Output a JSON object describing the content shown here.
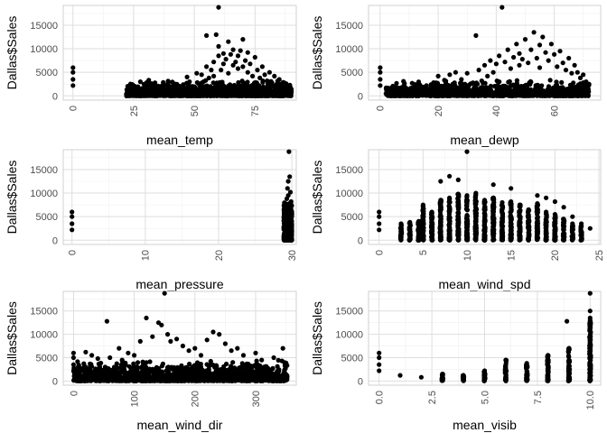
{
  "chart_data": [
    {
      "type": "scatter",
      "xlabel": "mean_temp",
      "ylabel": "Dallas$Sales",
      "xlim": [
        -4,
        92
      ],
      "ylim": [
        -900,
        19200
      ],
      "xticks": [
        0,
        25,
        50,
        75
      ],
      "xtick_labels": [
        "0",
        "25",
        "50",
        "75"
      ],
      "yticks": [
        0,
        5000,
        10000,
        15000
      ],
      "ytick_labels": [
        "0",
        "5000",
        "10000",
        "15000"
      ],
      "minor_x": [
        12.5,
        37.5,
        62.5,
        87.5
      ],
      "minor_y": [
        2500,
        7500,
        12500,
        17500
      ],
      "grid": true,
      "x_label_rotation": -90,
      "points": [
        [
          0,
          6000
        ],
        [
          0,
          5000
        ],
        [
          0,
          3500
        ],
        [
          0,
          2200
        ],
        [
          22,
          400
        ],
        [
          24,
          600
        ],
        [
          25,
          300
        ],
        [
          27,
          800
        ],
        [
          28,
          500
        ],
        [
          30,
          700
        ],
        [
          32,
          400
        ],
        [
          33,
          900
        ],
        [
          35,
          600
        ],
        [
          36,
          1100
        ],
        [
          38,
          800
        ],
        [
          40,
          1300
        ],
        [
          42,
          900
        ],
        [
          43,
          1500
        ],
        [
          45,
          1200
        ],
        [
          46,
          1700
        ],
        [
          47,
          4000
        ],
        [
          48,
          3000
        ],
        [
          50,
          1500
        ],
        [
          51,
          4800
        ],
        [
          52,
          2500
        ],
        [
          53,
          4500
        ],
        [
          54,
          2000
        ],
        [
          55,
          12800
        ],
        [
          55,
          6200
        ],
        [
          56,
          3800
        ],
        [
          57,
          5500
        ],
        [
          58,
          7200
        ],
        [
          58,
          4200
        ],
        [
          59,
          13000
        ],
        [
          60,
          8500
        ],
        [
          60,
          10500
        ],
        [
          60,
          18800
        ],
        [
          61,
          5500
        ],
        [
          62,
          9000
        ],
        [
          62,
          6800
        ],
        [
          63,
          7800
        ],
        [
          64,
          11500
        ],
        [
          64,
          4800
        ],
        [
          65,
          8800
        ],
        [
          66,
          6500
        ],
        [
          66,
          9800
        ],
        [
          67,
          7200
        ],
        [
          68,
          5800
        ],
        [
          68,
          8500
        ],
        [
          69,
          9600
        ],
        [
          70,
          6200
        ],
        [
          70,
          12000
        ],
        [
          71,
          7500
        ],
        [
          72,
          5000
        ],
        [
          72,
          9200
        ],
        [
          73,
          6800
        ],
        [
          74,
          4200
        ],
        [
          75,
          8200
        ],
        [
          76,
          5500
        ],
        [
          77,
          3800
        ],
        [
          78,
          6200
        ],
        [
          79,
          4500
        ],
        [
          80,
          3200
        ],
        [
          81,
          5000
        ],
        [
          82,
          2800
        ],
        [
          83,
          4200
        ],
        [
          84,
          2500
        ],
        [
          85,
          3500
        ],
        [
          86,
          2200
        ],
        [
          87,
          2800
        ],
        [
          88,
          1800
        ],
        [
          89,
          2000
        ],
        [
          90,
          1400
        ],
        [
          30,
          200
        ],
        [
          35,
          300
        ],
        [
          40,
          500
        ],
        [
          45,
          700
        ],
        [
          50,
          900
        ],
        [
          55,
          1200
        ],
        [
          60,
          1500
        ],
        [
          65,
          1800
        ],
        [
          70,
          1800
        ],
        [
          75,
          1600
        ],
        [
          80,
          1400
        ],
        [
          85,
          1300
        ],
        [
          90,
          1000
        ]
      ],
      "band": {
        "x_from": 22,
        "x_to": 90,
        "y_low": 0,
        "y_high_min": 500,
        "y_high_max": 3500,
        "density": 1200
      }
    },
    {
      "type": "scatter",
      "xlabel": "mean_dewp",
      "ylabel": "Dallas$Sales",
      "xlim": [
        -4,
        76
      ],
      "ylim": [
        -900,
        19200
      ],
      "xticks": [
        0,
        20,
        40,
        60
      ],
      "xtick_labels": [
        "0",
        "20",
        "40",
        "60"
      ],
      "yticks": [
        0,
        5000,
        10000,
        15000
      ],
      "ytick_labels": [
        "0",
        "5000",
        "10000",
        "15000"
      ],
      "minor_x": [
        10,
        30,
        50,
        70
      ],
      "minor_y": [
        2500,
        7500,
        12500,
        17500
      ],
      "grid": true,
      "x_label_rotation": -90,
      "points": [
        [
          0,
          6000
        ],
        [
          0,
          5000
        ],
        [
          0,
          3500
        ],
        [
          0,
          2200
        ],
        [
          2,
          500
        ],
        [
          4,
          400
        ],
        [
          6,
          600
        ],
        [
          8,
          300
        ],
        [
          10,
          700
        ],
        [
          12,
          500
        ],
        [
          14,
          900
        ],
        [
          16,
          600
        ],
        [
          18,
          1200
        ],
        [
          20,
          800
        ],
        [
          20,
          4200
        ],
        [
          22,
          1500
        ],
        [
          24,
          4500
        ],
        [
          25,
          2500
        ],
        [
          26,
          5000
        ],
        [
          28,
          3500
        ],
        [
          30,
          4800
        ],
        [
          32,
          2800
        ],
        [
          33,
          12800
        ],
        [
          34,
          5500
        ],
        [
          35,
          3200
        ],
        [
          36,
          6500
        ],
        [
          37,
          4200
        ],
        [
          38,
          7500
        ],
        [
          39,
          5000
        ],
        [
          40,
          6800
        ],
        [
          41,
          8500
        ],
        [
          42,
          18800
        ],
        [
          43,
          7200
        ],
        [
          44,
          9800
        ],
        [
          45,
          5800
        ],
        [
          46,
          8200
        ],
        [
          47,
          11000
        ],
        [
          48,
          6500
        ],
        [
          48,
          9000
        ],
        [
          49,
          7800
        ],
        [
          50,
          12000
        ],
        [
          51,
          7000
        ],
        [
          52,
          9800
        ],
        [
          53,
          13500
        ],
        [
          54,
          8000
        ],
        [
          55,
          10800
        ],
        [
          55,
          6000
        ],
        [
          56,
          12500
        ],
        [
          57,
          9200
        ],
        [
          58,
          7500
        ],
        [
          59,
          11000
        ],
        [
          60,
          8800
        ],
        [
          61,
          6200
        ],
        [
          62,
          9500
        ],
        [
          63,
          7000
        ],
        [
          64,
          5500
        ],
        [
          65,
          8000
        ],
        [
          66,
          4800
        ],
        [
          67,
          6500
        ],
        [
          68,
          5000
        ],
        [
          69,
          3800
        ],
        [
          70,
          4500
        ],
        [
          71,
          3000
        ],
        [
          72,
          2500
        ]
      ],
      "band": {
        "x_from": 2,
        "x_to": 72,
        "y_low": 0,
        "y_high_min": 500,
        "y_high_max": 3500,
        "density": 1200
      }
    },
    {
      "type": "scatter",
      "xlabel": "mean_pressure",
      "ylabel": "Dallas$Sales",
      "xlim": [
        -1.2,
        30.6
      ],
      "ylim": [
        -900,
        19200
      ],
      "xticks": [
        0,
        10,
        20,
        30
      ],
      "xtick_labels": [
        "0",
        "10",
        "20",
        "30"
      ],
      "yticks": [
        0,
        5000,
        10000,
        15000
      ],
      "ytick_labels": [
        "0",
        "5000",
        "10000",
        "15000"
      ],
      "minor_x": [
        5,
        15,
        25
      ],
      "minor_y": [
        2500,
        7500,
        12500,
        17500
      ],
      "grid": true,
      "x_label_rotation": -90,
      "points": [
        [
          0,
          6000
        ],
        [
          0,
          5000
        ],
        [
          0,
          3500
        ],
        [
          0,
          2200
        ],
        [
          29.6,
          18800
        ],
        [
          29.7,
          13500
        ],
        [
          29.5,
          12500
        ],
        [
          29.4,
          11000
        ],
        [
          29.8,
          10200
        ],
        [
          29.5,
          9500
        ],
        [
          29.3,
          8800
        ],
        [
          29.9,
          8200
        ],
        [
          29.6,
          7600
        ]
      ],
      "band": {
        "x_from": 28.9,
        "x_to": 30.0,
        "y_low": 0,
        "y_high_min": 7000,
        "y_high_max": 8000,
        "density": 600,
        "strip": true
      }
    },
    {
      "type": "scatter",
      "xlabel": "mean_wind_spd",
      "ylabel": "Dallas$Sales",
      "xlim": [
        -1.2,
        25.2
      ],
      "ylim": [
        -900,
        19200
      ],
      "xticks": [
        0,
        5,
        10,
        15,
        20,
        25
      ],
      "xtick_labels": [
        "0",
        "5",
        "10",
        "15",
        "20",
        "25"
      ],
      "minor_x": [
        2.5,
        7.5,
        12.5,
        17.5,
        22.5
      ],
      "yticks": [
        0,
        5000,
        10000,
        15000
      ],
      "ytick_labels": [
        "0",
        "5000",
        "10000",
        "15000"
      ],
      "minor_y": [
        2500,
        7500,
        12500,
        17500
      ],
      "grid": true,
      "x_label_rotation": -90,
      "points": [
        [
          0,
          6000
        ],
        [
          0,
          5000
        ],
        [
          0,
          3500
        ],
        [
          0,
          2200
        ],
        [
          7,
          12500
        ],
        [
          8,
          13600
        ],
        [
          9,
          12800
        ],
        [
          10,
          18800
        ],
        [
          11,
          10000
        ],
        [
          13,
          11800
        ],
        [
          15,
          11000
        ],
        [
          18,
          9500
        ],
        [
          19,
          9000
        ],
        [
          20,
          8200
        ],
        [
          21,
          7000
        ],
        [
          22,
          5000
        ],
        [
          23,
          3500
        ],
        [
          24,
          2500
        ]
      ],
      "columns": [
        {
          "x": 2.5,
          "top": 3500
        },
        {
          "x": 3.5,
          "top": 3800
        },
        {
          "x": 4.5,
          "top": 4000
        },
        {
          "x": 5.0,
          "top": 7500
        },
        {
          "x": 6.0,
          "top": 6000
        },
        {
          "x": 7.0,
          "top": 8500
        },
        {
          "x": 8.0,
          "top": 9000
        },
        {
          "x": 9.0,
          "top": 9800
        },
        {
          "x": 10.0,
          "top": 9500
        },
        {
          "x": 11.0,
          "top": 9600
        },
        {
          "x": 12.0,
          "top": 8500
        },
        {
          "x": 13.0,
          "top": 9000
        },
        {
          "x": 14.0,
          "top": 8000
        },
        {
          "x": 15.0,
          "top": 8200
        },
        {
          "x": 16.0,
          "top": 7500
        },
        {
          "x": 17.0,
          "top": 6500
        },
        {
          "x": 18.0,
          "top": 7800
        },
        {
          "x": 19.0,
          "top": 6000
        },
        {
          "x": 20.0,
          "top": 5500
        },
        {
          "x": 21.0,
          "top": 4500
        },
        {
          "x": 22.0,
          "top": 3500
        },
        {
          "x": 23.0,
          "top": 3000
        }
      ]
    },
    {
      "type": "scatter",
      "xlabel": "mean_wind_dir",
      "ylabel": "Dallas$Sales",
      "xlim": [
        -17,
        367
      ],
      "ylim": [
        -900,
        19200
      ],
      "xticks": [
        0,
        100,
        200,
        300
      ],
      "xtick_labels": [
        "0",
        "100",
        "200",
        "300"
      ],
      "minor_x": [
        50,
        150,
        250,
        350
      ],
      "yticks": [
        0,
        5000,
        10000,
        15000
      ],
      "ytick_labels": [
        "0",
        "5000",
        "10000",
        "15000"
      ],
      "minor_y": [
        2500,
        7500,
        12500,
        17500
      ],
      "grid": true,
      "x_label_rotation": -90,
      "points": [
        [
          0,
          6000
        ],
        [
          0,
          5000
        ],
        [
          0,
          3500
        ],
        [
          0,
          2200
        ],
        [
          55,
          12800
        ],
        [
          75,
          7000
        ],
        [
          90,
          6000
        ],
        [
          110,
          8500
        ],
        [
          120,
          13500
        ],
        [
          130,
          9500
        ],
        [
          140,
          12500
        ],
        [
          145,
          12000
        ],
        [
          150,
          18800
        ],
        [
          155,
          10000
        ],
        [
          160,
          8500
        ],
        [
          170,
          9000
        ],
        [
          180,
          7500
        ],
        [
          190,
          6500
        ],
        [
          200,
          7000
        ],
        [
          210,
          5500
        ],
        [
          220,
          8800
        ],
        [
          230,
          10500
        ],
        [
          240,
          10000
        ],
        [
          250,
          8000
        ],
        [
          260,
          6500
        ],
        [
          270,
          7000
        ],
        [
          280,
          5500
        ],
        [
          300,
          6000
        ],
        [
          310,
          4500
        ],
        [
          330,
          5000
        ],
        [
          345,
          7000
        ],
        [
          20,
          6200
        ],
        [
          30,
          5500
        ],
        [
          40,
          4800
        ],
        [
          60,
          5000
        ],
        [
          80,
          4500
        ],
        [
          100,
          5500
        ]
      ],
      "band": {
        "x_from": 0,
        "x_to": 352,
        "y_low": 0,
        "y_high_min": 1500,
        "y_high_max": 4500,
        "density": 1400
      }
    },
    {
      "type": "scatter",
      "xlabel": "mean_visib",
      "ylabel": "Dallas$Sales",
      "xlim": [
        -0.5,
        10.5
      ],
      "ylim": [
        -900,
        19200
      ],
      "xticks": [
        0,
        2.5,
        5,
        7.5,
        10
      ],
      "xtick_labels": [
        "0.0",
        "2.5",
        "5.0",
        "7.5",
        "10.0"
      ],
      "minor_x": [
        1.25,
        3.75,
        6.25,
        8.75
      ],
      "yticks": [
        0,
        5000,
        10000,
        15000
      ],
      "ytick_labels": [
        "0",
        "5000",
        "10000",
        "15000"
      ],
      "minor_y": [
        2500,
        7500,
        12500,
        17500
      ],
      "grid": true,
      "x_label_rotation": -90,
      "points": [
        [
          0,
          6000
        ],
        [
          0,
          5000
        ],
        [
          0,
          3500
        ],
        [
          0,
          2200
        ],
        [
          1,
          1200
        ],
        [
          2,
          800
        ],
        [
          8.9,
          12800
        ],
        [
          9,
          7000
        ],
        [
          10,
          18800
        ],
        [
          10,
          15000
        ],
        [
          10,
          13500
        ]
      ],
      "columns": [
        {
          "x": 3.0,
          "top": 1500
        },
        {
          "x": 4.0,
          "top": 1200
        },
        {
          "x": 5.0,
          "top": 2200
        },
        {
          "x": 6.0,
          "top": 4500
        },
        {
          "x": 7.0,
          "top": 3800
        },
        {
          "x": 8.0,
          "top": 5500
        },
        {
          "x": 9.0,
          "top": 7000
        },
        {
          "x": 10.0,
          "top": 13000
        }
      ]
    }
  ]
}
